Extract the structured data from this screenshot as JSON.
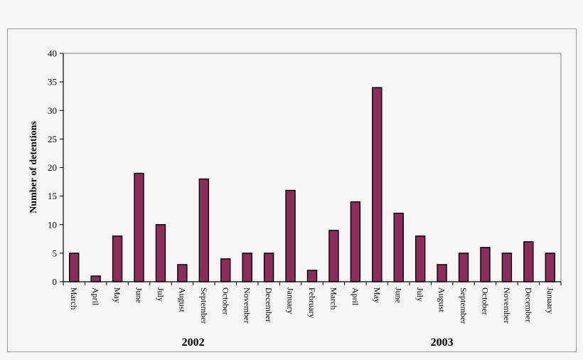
{
  "chart_data": {
    "type": "bar",
    "title": "",
    "xlabel": "",
    "ylabel": "Number of detentions",
    "ylim": [
      0,
      40
    ],
    "yticks": [
      0,
      5,
      10,
      15,
      20,
      25,
      30,
      35,
      40
    ],
    "grid": false,
    "legend": "none",
    "colors": {
      "bar_fill": "#8b2c5a",
      "bar_stroke": "#000000"
    },
    "categories": [
      "March",
      "April",
      "May",
      "June",
      "July",
      "August",
      "September",
      "October",
      "November",
      "December",
      "January",
      "February",
      "March",
      "April",
      "May",
      "June",
      "July",
      "August",
      "September",
      "October",
      "November",
      "December",
      "January"
    ],
    "values": [
      5,
      1,
      8,
      19,
      10,
      3,
      18,
      4,
      5,
      5,
      16,
      2,
      9,
      14,
      34,
      12,
      8,
      3,
      5,
      6,
      5,
      7,
      5
    ],
    "year_groups": [
      {
        "label": "2002",
        "from": 0,
        "to": 11
      },
      {
        "label": "2003",
        "from": 12,
        "to": 22
      }
    ]
  }
}
